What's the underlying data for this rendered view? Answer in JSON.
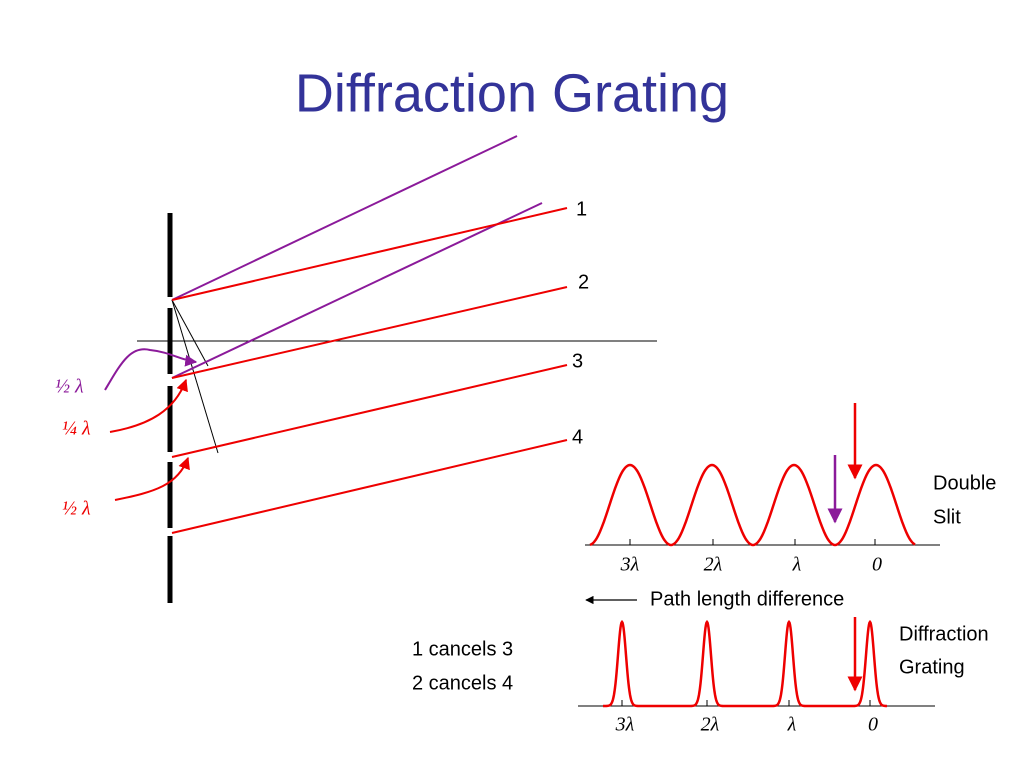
{
  "title": "Diffraction Grating",
  "rays": {
    "labels": [
      "1",
      "2",
      "3",
      "4"
    ]
  },
  "annotations": [
    "½ λ",
    "¼ λ",
    "½ λ"
  ],
  "double_slit": {
    "label": [
      "Double",
      "Slit"
    ],
    "ticks": [
      "3λ",
      "2λ",
      "λ",
      "0"
    ]
  },
  "axis_label": "Path length difference",
  "grating": {
    "label": [
      "Diffraction",
      "Grating"
    ],
    "ticks": [
      "3λ",
      "2λ",
      "λ",
      "0"
    ]
  },
  "notes": [
    "1 cancels 3",
    "2 cancels 4"
  ]
}
